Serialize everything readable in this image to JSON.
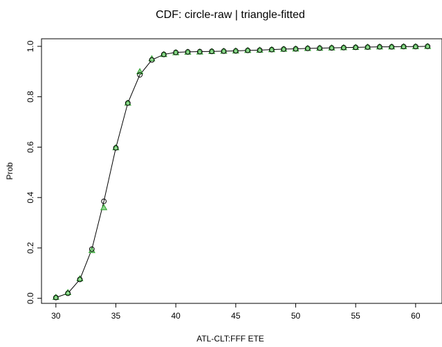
{
  "chart_data": {
    "type": "scatter",
    "title": "CDF: circle-raw | triangle-fitted",
    "xlabel": "ATL-CLT:FFF ETE",
    "ylabel": "Prob",
    "xlim": [
      28.8,
      62.2
    ],
    "ylim": [
      -0.02,
      1.03
    ],
    "xticks": [
      "30",
      "35",
      "40",
      "45",
      "50",
      "55",
      "60"
    ],
    "yticks": [
      "0.0",
      "0.2",
      "0.4",
      "0.6",
      "0.8",
      "1.0"
    ],
    "grid": false,
    "legend": "none",
    "colors": {
      "raw": "#000000",
      "fitted": "#2ca02c",
      "fitted_fill": "#90d890",
      "line": "#000000"
    },
    "x": [
      30,
      31,
      32,
      33,
      34,
      35,
      36,
      37,
      38,
      39,
      40,
      41,
      42,
      43,
      44,
      45,
      46,
      47,
      48,
      49,
      50,
      51,
      52,
      53,
      54,
      55,
      56,
      57,
      58,
      59,
      60,
      61
    ],
    "series": [
      {
        "marker": "circle",
        "values": [
          0.003,
          0.02,
          0.075,
          0.195,
          0.385,
          0.597,
          0.775,
          0.887,
          0.946,
          0.968,
          0.976,
          0.978,
          0.979,
          0.98,
          0.981,
          0.982,
          0.984,
          0.985,
          0.987,
          0.989,
          0.99,
          0.992,
          0.993,
          0.994,
          0.995,
          0.996,
          0.997,
          0.998,
          0.998,
          0.999,
          0.999,
          1.0
        ]
      },
      {
        "marker": "triangle",
        "values": [
          0.004,
          0.023,
          0.078,
          0.19,
          0.36,
          0.598,
          0.775,
          0.9,
          0.951,
          0.968,
          0.975,
          0.977,
          0.978,
          0.98,
          0.981,
          0.982,
          0.984,
          0.985,
          0.987,
          0.989,
          0.99,
          0.992,
          0.993,
          0.994,
          0.995,
          0.996,
          0.997,
          0.998,
          0.998,
          0.999,
          0.999,
          1.0
        ]
      }
    ]
  }
}
